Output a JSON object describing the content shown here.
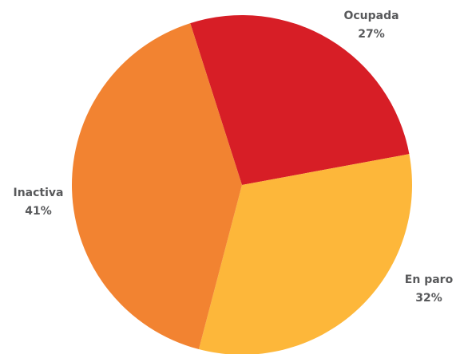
{
  "chart_data": {
    "type": "pie",
    "categories": [
      "Ocupada",
      "En paro",
      "Inactiva"
    ],
    "values": [
      27,
      32,
      41
    ],
    "value_labels": [
      "27%",
      "32%",
      "41%"
    ],
    "colors": [
      "#d71e26",
      "#fdb73a",
      "#f28331"
    ]
  }
}
